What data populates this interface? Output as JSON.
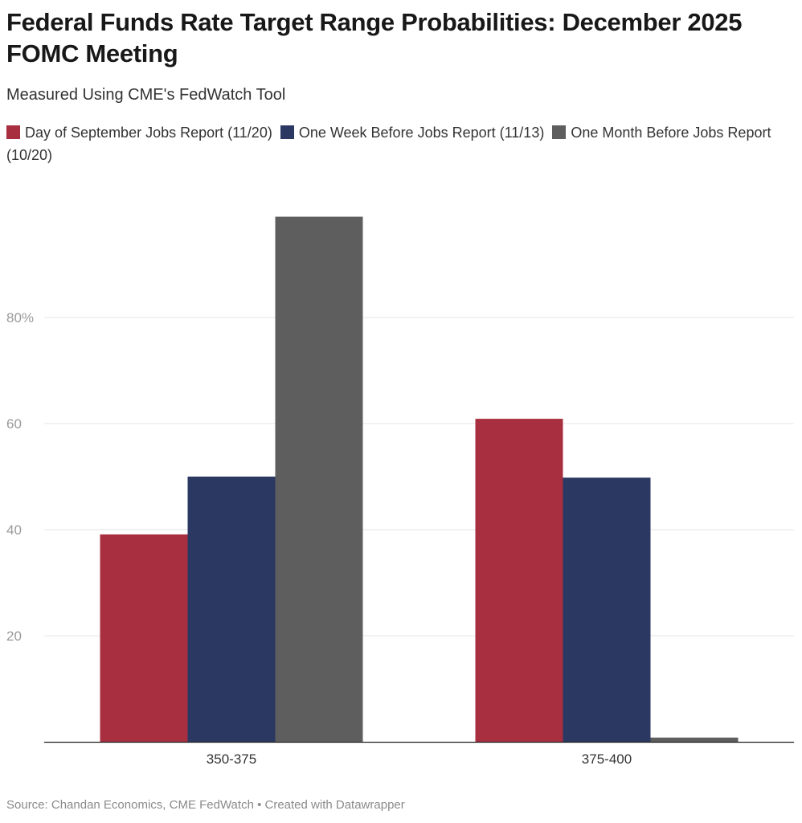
{
  "title": "Federal Funds Rate Target Range Probabilities: December 2025 FOMC Meeting",
  "subtitle": "Measured Using CME's FedWatch Tool",
  "source": "Source: Chandan Economics, CME FedWatch • Created with Datawrapper",
  "chart_data": {
    "type": "bar",
    "categories": [
      "350-375",
      "375-400"
    ],
    "series": [
      {
        "name": "Day of September Jobs Report (11/20)",
        "color": "#a82f40",
        "values": [
          39.1,
          60.9
        ]
      },
      {
        "name": "One Week Before Jobs Report (11/13)",
        "color": "#2a3862",
        "values": [
          50.0,
          49.8
        ]
      },
      {
        "name": "One Month Before Jobs Report (10/20)",
        "color": "#5e5e5e",
        "values": [
          99.0,
          0.8
        ]
      }
    ],
    "yticks": [
      20,
      40,
      60,
      80
    ],
    "ytick_labels": [
      "20",
      "40",
      "60",
      "80%"
    ],
    "ylim": [
      0,
      100
    ],
    "grid": true,
    "legend": "top"
  }
}
